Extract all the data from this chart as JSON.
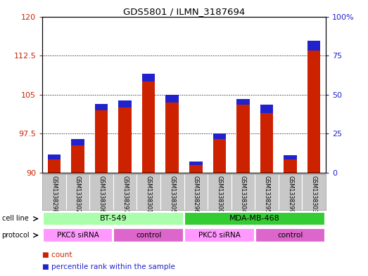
{
  "title": "GDS5801 / ILMN_3187694",
  "samples": [
    "GSM1338298",
    "GSM1338302",
    "GSM1338306",
    "GSM1338297",
    "GSM1338301",
    "GSM1338305",
    "GSM1338296",
    "GSM1338300",
    "GSM1338304",
    "GSM1338295",
    "GSM1338299",
    "GSM1338303"
  ],
  "red_values": [
    92.5,
    95.2,
    102.0,
    102.5,
    107.5,
    103.5,
    91.5,
    96.5,
    103.0,
    101.5,
    92.5,
    113.5
  ],
  "blue_heights": [
    1.0,
    1.2,
    1.2,
    1.4,
    1.5,
    1.5,
    0.6,
    1.0,
    1.2,
    1.5,
    0.8,
    1.8
  ],
  "ymin": 90,
  "ymax": 120,
  "y_ticks": [
    90,
    97.5,
    105,
    112.5,
    120
  ],
  "y_right_ticks": [
    0,
    25,
    50,
    75,
    100
  ],
  "cell_line_groups": [
    {
      "label": "BT-549",
      "start": 0,
      "end": 5,
      "color": "#AAFFAA"
    },
    {
      "label": "MDA-MB-468",
      "start": 6,
      "end": 11,
      "color": "#33CC33"
    }
  ],
  "protocol_groups": [
    {
      "label": "PKCδ siRNA",
      "start": 0,
      "end": 2,
      "color": "#FF99FF"
    },
    {
      "label": "control",
      "start": 3,
      "end": 5,
      "color": "#DD66CC"
    },
    {
      "label": "PKCδ siRNA",
      "start": 6,
      "end": 8,
      "color": "#FF99FF"
    },
    {
      "label": "control",
      "start": 9,
      "end": 11,
      "color": "#DD66CC"
    }
  ],
  "bar_width": 0.55,
  "red_color": "#CC2200",
  "blue_color": "#2222CC",
  "bg_color": "#FFFFFF",
  "plot_bg_color": "#FFFFFF",
  "sample_bg_color": "#C8C8C8",
  "legend_count": "count",
  "legend_percentile": "percentile rank within the sample"
}
